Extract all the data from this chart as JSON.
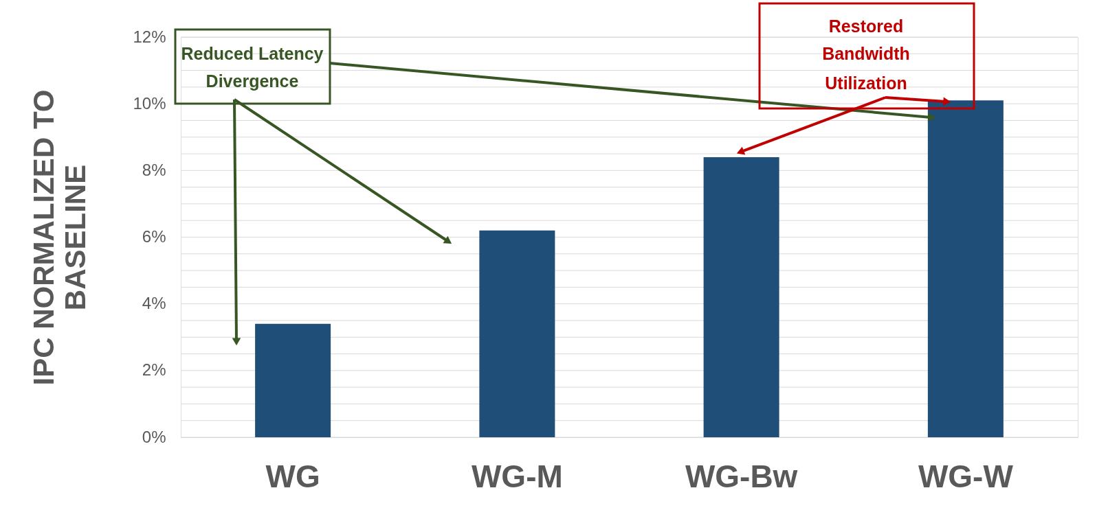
{
  "chart_data": {
    "type": "bar",
    "ylabel": "IPC NORMALIZED TO BASELINE",
    "categories": [
      "WG",
      "WG-M",
      "WG-Bw",
      "WG-W"
    ],
    "values": [
      3.4,
      6.2,
      8.4,
      10.1
    ],
    "color": "#1f4e79",
    "ylim": [
      0,
      12
    ],
    "yticks": [
      {
        "value": 0,
        "label": "0%"
      },
      {
        "value": 0.5,
        "label": null
      },
      {
        "value": 1,
        "label": null
      },
      {
        "value": 1.5,
        "label": null
      },
      {
        "value": 2,
        "label": "2%"
      },
      {
        "value": 2.5,
        "label": null
      },
      {
        "value": 3,
        "label": null
      },
      {
        "value": 3.5,
        "label": null
      },
      {
        "value": 4,
        "label": "4%"
      },
      {
        "value": 4.5,
        "label": null
      },
      {
        "value": 5,
        "label": null
      },
      {
        "value": 5.5,
        "label": null
      },
      {
        "value": 6,
        "label": "6%"
      },
      {
        "value": 6.5,
        "label": null
      },
      {
        "value": 7,
        "label": null
      },
      {
        "value": 7.5,
        "label": null
      },
      {
        "value": 8,
        "label": "8%"
      },
      {
        "value": 8.5,
        "label": null
      },
      {
        "value": 9,
        "label": null
      },
      {
        "value": 9.5,
        "label": null
      },
      {
        "value": 10,
        "label": "10%"
      },
      {
        "value": 10.5,
        "label": null
      },
      {
        "value": 11,
        "label": null
      },
      {
        "value": 11.5,
        "label": null
      },
      {
        "value": 12,
        "label": "12%"
      }
    ],
    "grid": "y",
    "annotations": [
      "Reduced Latency Divergence",
      {
        "text": "Restored Bandwidth Utilization",
        "x": "WG-Bw",
        "y": 8.4
      }
    ]
  }
}
